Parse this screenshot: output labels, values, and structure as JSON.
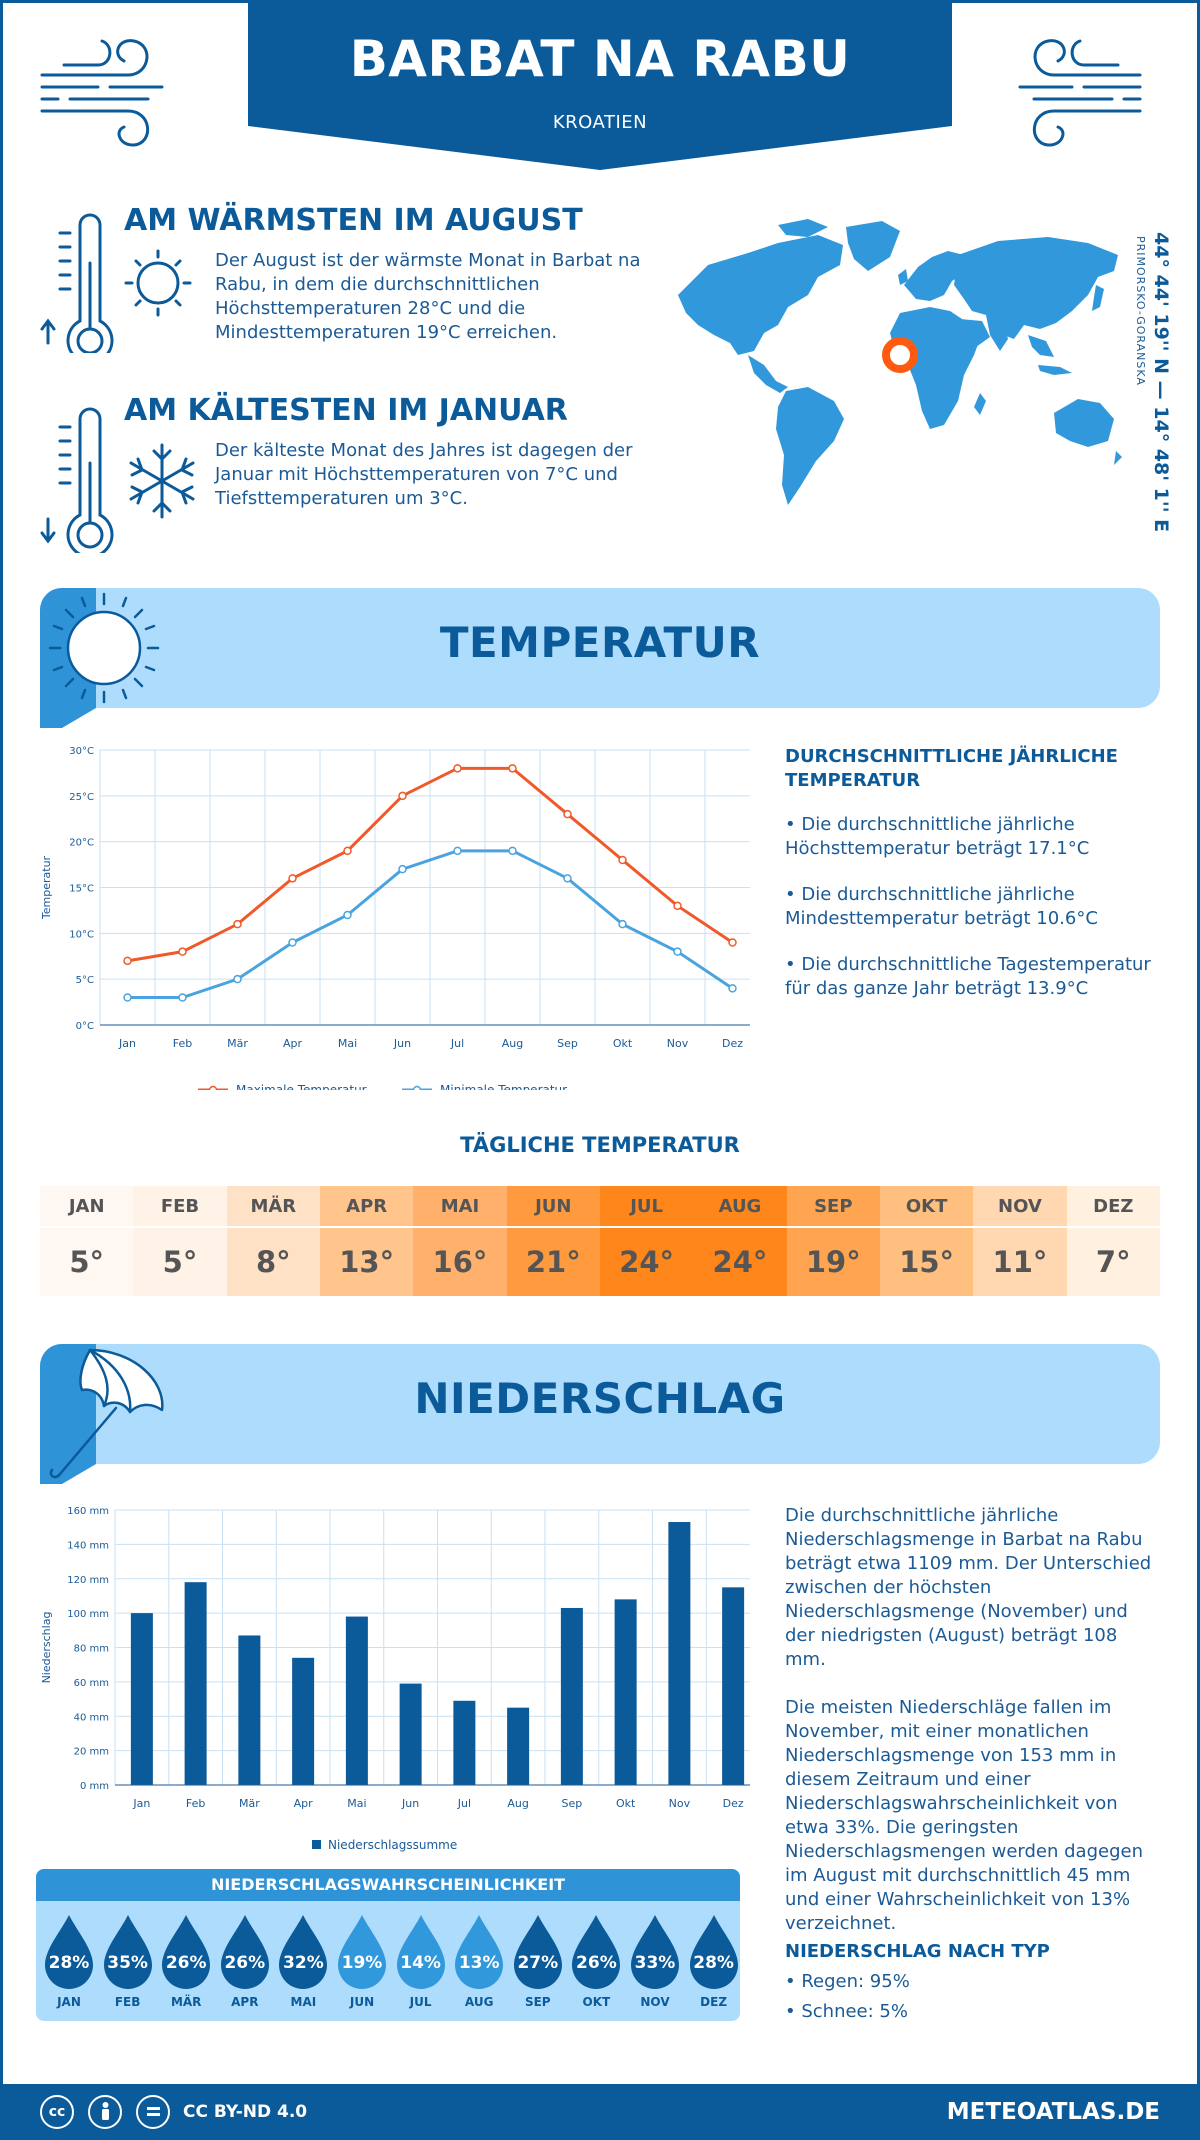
{
  "header": {
    "title": "BARBAT NA RABU",
    "country": "KROATIEN"
  },
  "warmest": {
    "title": "AM WÄRMSTEN IM AUGUST",
    "text": "Der August ist der wärmste Monat in Barbat na Rabu, in dem die durchschnittlichen Höchsttemperaturen 28°C und die Mindesttemperaturen 19°C erreichen."
  },
  "coldest": {
    "title": "AM KÄLTESTEN IM JANUAR",
    "text": "Der kälteste Monat des Jahres ist dagegen der Januar mit Höchsttemperaturen von 7°C und Tiefsttemperaturen um 3°C."
  },
  "location": {
    "coords": "44° 44' 19'' N — 14° 48' 1'' E",
    "region": "PRIMORSKO-GORANSKA"
  },
  "temp_section": {
    "title": "TEMPERATUR",
    "side_title": "DURCHSCHNITTLICHE JÄHRLICHE TEMPERATUR",
    "bullets": [
      "• Die durchschnittliche jährliche Höchsttemperatur beträgt 17.1°C",
      "• Die durchschnittliche jährliche Mindesttemperatur beträgt 10.6°C",
      "• Die durchschnittliche Tagestemperatur für das ganze Jahr beträgt 13.9°C"
    ]
  },
  "daily": {
    "title": "TÄGLICHE TEMPERATUR",
    "months": [
      "JAN",
      "FEB",
      "MÄR",
      "APR",
      "MAI",
      "JUN",
      "JUL",
      "AUG",
      "SEP",
      "OKT",
      "NOV",
      "DEZ"
    ],
    "values": [
      "5°",
      "5°",
      "8°",
      "13°",
      "16°",
      "21°",
      "24°",
      "24°",
      "19°",
      "15°",
      "11°",
      "7°"
    ],
    "colors": [
      "#fff8f2",
      "#fff3e8",
      "#ffe2c6",
      "#ffc58c",
      "#ffb06a",
      "#ff9a3e",
      "#ff861a",
      "#ff861a",
      "#ffa450",
      "#ffbf7e",
      "#ffd7b0",
      "#fff0e0"
    ]
  },
  "precip_section": {
    "title": "NIEDERSCHLAG",
    "para1": "Die durchschnittliche jährliche Niederschlagsmenge in Barbat na Rabu beträgt etwa 1109 mm. Der Unterschied zwischen der höchsten Niederschlagsmenge (November) und der niedrigsten (August) beträgt 108 mm.",
    "para2": "Die meisten Niederschläge fallen im November, mit einer monatlichen Niederschlagsmenge von 153 mm in diesem Zeitraum und einer Niederschlagswahrscheinlichkeit von etwa 33%. Die geringsten Niederschlagsmengen werden dagegen im August mit durchschnittlich 45 mm und einer Wahrscheinlichkeit von 13% verzeichnet.",
    "type_title": "NIEDERSCHLAG NACH TYP",
    "types": [
      "• Regen: 95%",
      "• Schnee: 5%"
    ]
  },
  "probability": {
    "title": "NIEDERSCHLAGSWAHRSCHEINLICHKEIT",
    "months": [
      "JAN",
      "FEB",
      "MÄR",
      "APR",
      "MAI",
      "JUN",
      "JUL",
      "AUG",
      "SEP",
      "OKT",
      "NOV",
      "DEZ"
    ],
    "values": [
      "28%",
      "35%",
      "26%",
      "26%",
      "32%",
      "19%",
      "14%",
      "13%",
      "27%",
      "26%",
      "33%",
      "28%"
    ],
    "dark_color": "#0b5a99",
    "light_color": "#3298dc"
  },
  "footer": {
    "license": "CC BY-ND 4.0",
    "site": "METEOATLAS.DE"
  },
  "chart_data": [
    {
      "type": "line",
      "categories": [
        "Jan",
        "Feb",
        "Mär",
        "Apr",
        "Mai",
        "Jun",
        "Jul",
        "Aug",
        "Sep",
        "Okt",
        "Nov",
        "Dez"
      ],
      "series": [
        {
          "name": "Maximale Temperatur",
          "color": "#f0592a",
          "values": [
            7,
            8,
            11,
            16,
            19,
            25,
            28,
            28,
            23,
            18,
            13,
            9
          ]
        },
        {
          "name": "Minimale Temperatur",
          "color": "#4aa3df",
          "values": [
            3,
            3,
            5,
            9,
            12,
            17,
            19,
            19,
            16,
            11,
            8,
            4
          ]
        }
      ],
      "ylabel": "Temperatur",
      "ylim": [
        0,
        30
      ],
      "yticks": [
        "0°C",
        "5°C",
        "10°C",
        "15°C",
        "20°C",
        "25°C",
        "30°C"
      ],
      "grid": true,
      "legend": "bottom"
    },
    {
      "type": "bar",
      "categories": [
        "Jan",
        "Feb",
        "Mär",
        "Apr",
        "Mai",
        "Jun",
        "Jul",
        "Aug",
        "Sep",
        "Okt",
        "Nov",
        "Dez"
      ],
      "series": [
        {
          "name": "Niederschlagssumme",
          "color": "#0b5a99",
          "values": [
            100,
            118,
            87,
            74,
            98,
            59,
            49,
            45,
            103,
            108,
            153,
            115
          ]
        }
      ],
      "ylabel": "Niederschlag",
      "ylim": [
        0,
        160
      ],
      "yticks": [
        "0 mm",
        "20 mm",
        "40 mm",
        "60 mm",
        "80 mm",
        "100 mm",
        "120 mm",
        "140 mm",
        "160 mm"
      ],
      "grid": true,
      "legend": "bottom"
    }
  ]
}
